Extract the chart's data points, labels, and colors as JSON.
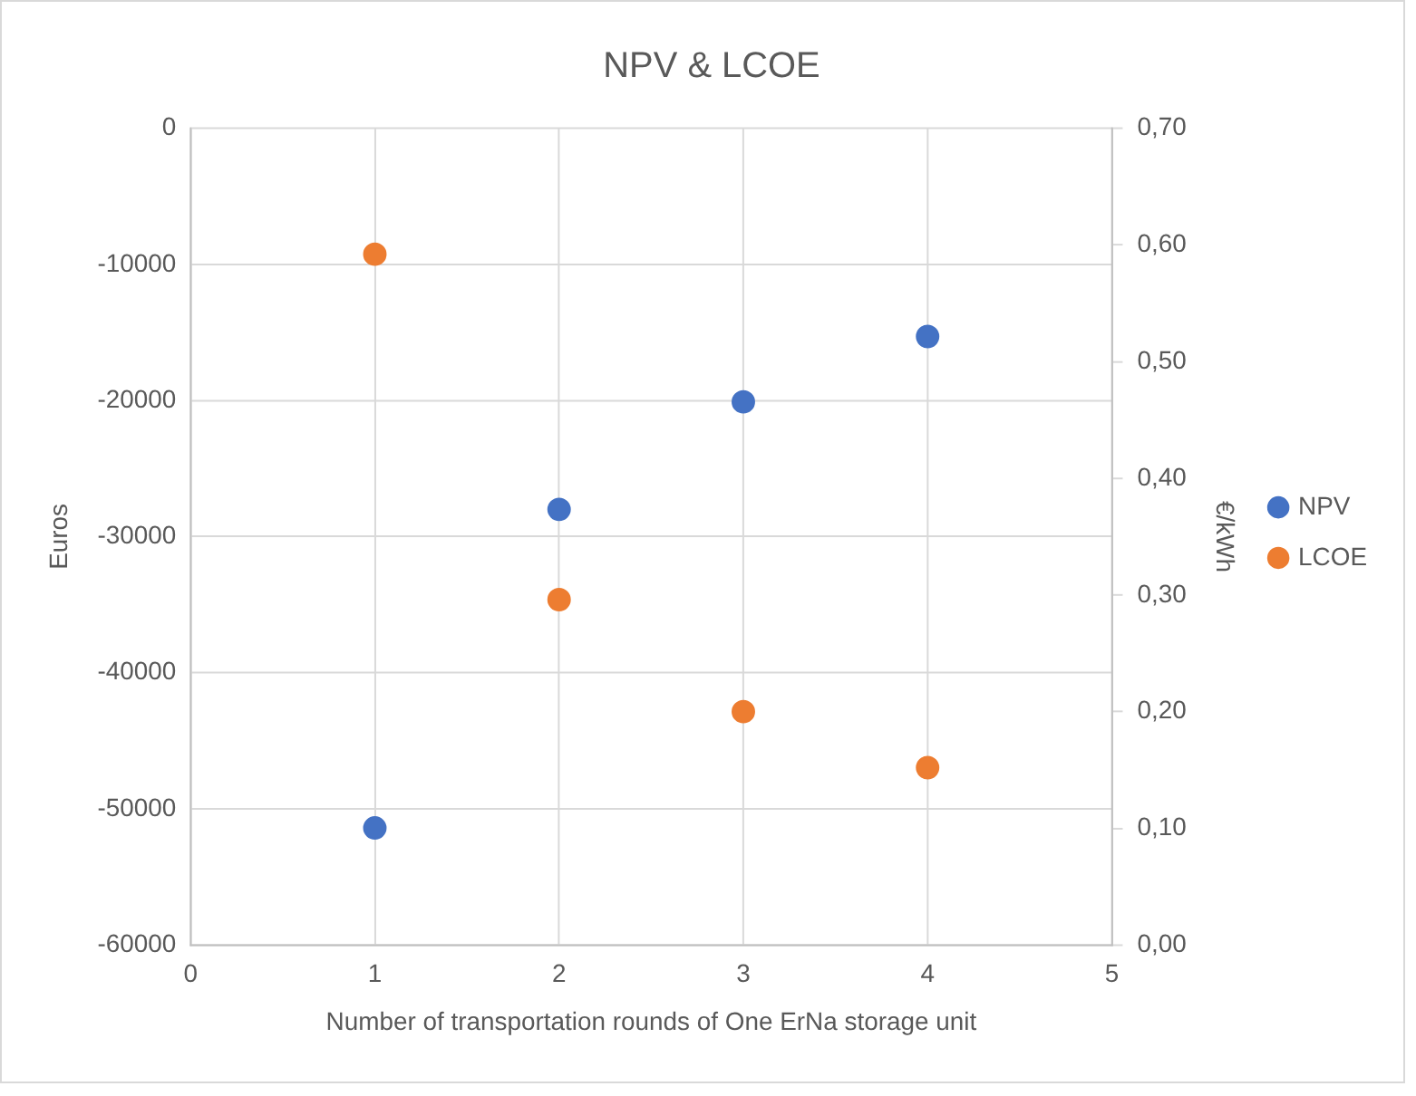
{
  "chart_data": {
    "type": "scatter",
    "title": "NPV & LCOE",
    "xlabel": "Number of transportation rounds of One ErNa storage unit",
    "ylabel": "Euros",
    "y2label": "€/kWh",
    "xlim": [
      0,
      5
    ],
    "xticks": [
      0,
      1,
      2,
      3,
      4,
      5
    ],
    "ylim": [
      -60000,
      0
    ],
    "yticks": [
      -60000,
      -50000,
      -40000,
      -30000,
      -20000,
      -10000,
      0
    ],
    "y2lim": [
      0,
      0.7
    ],
    "y2ticks": [
      {
        "value": 0,
        "label": "0,00"
      },
      {
        "value": 0.1,
        "label": "0,10"
      },
      {
        "value": 0.2,
        "label": "0,20"
      },
      {
        "value": 0.3,
        "label": "0,30"
      },
      {
        "value": 0.4,
        "label": "0,40"
      },
      {
        "value": 0.5,
        "label": "0,50"
      },
      {
        "value": 0.6,
        "label": "0,60"
      },
      {
        "value": 0.7,
        "label": "0,70"
      }
    ],
    "grid": true,
    "legend": "right",
    "marker": "circle",
    "series": [
      {
        "name": "NPV",
        "color": "#4472c4",
        "x": [
          1,
          2,
          3,
          4
        ],
        "values": [
          -51400,
          -28000,
          -20100,
          -15300
        ]
      },
      {
        "name": "LCOE",
        "color": "#ed7d31",
        "axis": "y2",
        "x": [
          1,
          2,
          3,
          4
        ],
        "values": [
          0.592,
          0.296,
          0.2,
          0.152
        ]
      }
    ]
  }
}
